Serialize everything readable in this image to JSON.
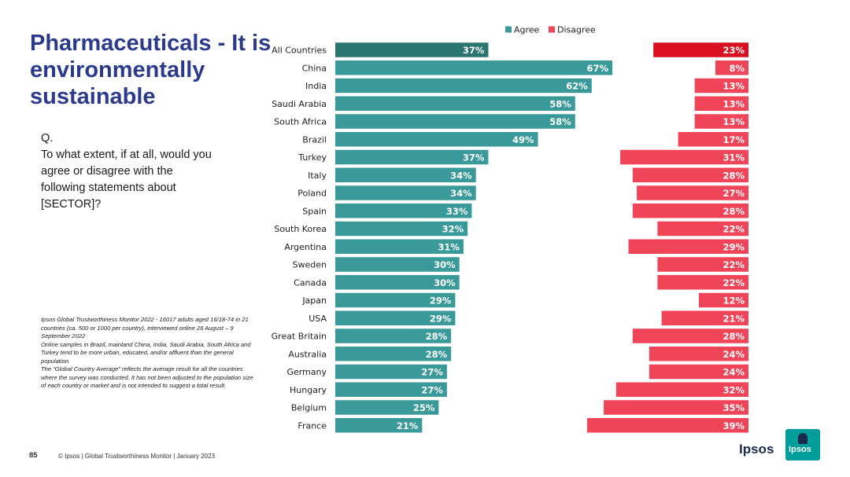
{
  "page": {
    "title": "Pharmaceuticals - It is environmentally sustainable",
    "question_prefix": "Q.",
    "question": "To what extent, if at all, would you agree or disagree with the following statements about [SECTOR]?",
    "notes": [
      "Ipsos Global Trustworthiness Monitor 2022 - 16017 adults aged 16/18-74 in 21 countries (ca. 500 or 1000 per country), interviewed online 26 August – 9 September 2022",
      "Online samples in Brazil, mainland China, India, Saudi Arabia, South Africa and Turkey tend to be more urban, educated, and/or affluent than the general population.",
      "The “Global Country Average” reflects the average result for all the countries where the survey was conducted. It has not been adjusted to the population size of each country or market and is not intended to suggest a total result."
    ],
    "page_number": "85",
    "footer": "© Ipsos | Global Trustworthiness Monitor | January 2023",
    "logo_text": "Ipsos",
    "logo_badge": "Ipsos"
  },
  "colors": {
    "title": "#2b3a8c",
    "agree": "#3a9a99",
    "agree_highlight": "#2b7571",
    "disagree": "#f04458",
    "disagree_highlight": "#d8101f"
  },
  "chart_data": {
    "type": "bar",
    "orientation": "horizontal",
    "legend_position": "top",
    "categories": [
      "All Countries",
      "China",
      "India",
      "Saudi Arabia",
      "South Africa",
      "Brazil",
      "Turkey",
      "Italy",
      "Poland",
      "Spain",
      "South Korea",
      "Argentina",
      "Sweden",
      "Canada",
      "Japan",
      "USA",
      "Great Britain",
      "Australia",
      "Germany",
      "Hungary",
      "Belgium",
      "France"
    ],
    "series": [
      {
        "name": "Agree",
        "values": [
          37,
          67,
          62,
          58,
          58,
          49,
          37,
          34,
          34,
          33,
          32,
          31,
          30,
          30,
          29,
          29,
          28,
          28,
          27,
          27,
          25,
          21
        ]
      },
      {
        "name": "Disagree",
        "values": [
          23,
          8,
          13,
          13,
          13,
          17,
          31,
          28,
          27,
          28,
          22,
          29,
          22,
          22,
          12,
          21,
          28,
          24,
          24,
          32,
          35,
          39
        ]
      }
    ],
    "value_suffix": "%",
    "highlight_category": "All Countries"
  }
}
